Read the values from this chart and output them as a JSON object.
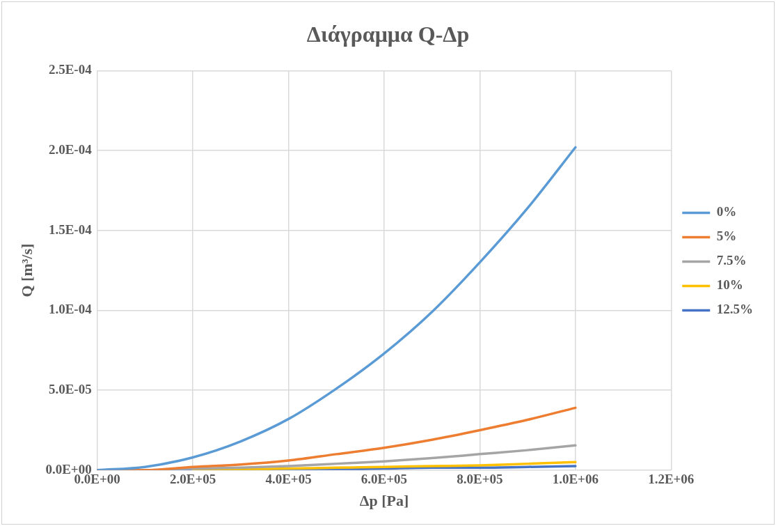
{
  "chart_data": {
    "type": "line",
    "title": "Διάγραμμα Q-Δp",
    "xlabel": "Δp [Pa]",
    "ylabel": "Q [m³/s]",
    "x": [
      0,
      100000,
      200000,
      300000,
      400000,
      500000,
      600000,
      700000,
      800000,
      900000,
      1000000
    ],
    "series": [
      {
        "name": "0%",
        "color": "#5b9bd5",
        "values": [
          0,
          2e-06,
          8e-06,
          1.8e-05,
          3.2e-05,
          5.1e-05,
          7.3e-05,
          9.9e-05,
          0.00013,
          0.000164,
          0.000202
        ]
      },
      {
        "name": "5%",
        "color": "#ed7d31",
        "values": [
          0,
          0,
          2e-06,
          3.5e-06,
          6e-06,
          1e-05,
          1.4e-05,
          1.9e-05,
          2.5e-05,
          3.15e-05,
          3.9e-05
        ]
      },
      {
        "name": "7.5%",
        "color": "#a5a5a5",
        "values": [
          0,
          0,
          1e-06,
          1.5e-06,
          2.5e-06,
          4e-06,
          5.5e-06,
          7.5e-06,
          1e-05,
          1.25e-05,
          1.55e-05
        ]
      },
      {
        "name": "10%",
        "color": "#ffc000",
        "values": [
          null,
          null,
          5e-07,
          5e-07,
          1e-06,
          1.5e-06,
          2e-06,
          2.5e-06,
          3e-06,
          4e-06,
          5e-06
        ]
      },
      {
        "name": "12.5%",
        "color": "#4472c4",
        "values": [
          0,
          0,
          0,
          0,
          5e-07,
          5e-07,
          1e-06,
          1.5e-06,
          1.5e-06,
          2e-06,
          2.5e-06
        ]
      }
    ],
    "xlim": [
      0,
      1200000
    ],
    "xticks": [
      {
        "value": 0,
        "label": "0.0E+00"
      },
      {
        "value": 200000,
        "label": "2.0E+05"
      },
      {
        "value": 400000,
        "label": "4.0E+05"
      },
      {
        "value": 600000,
        "label": "6.0E+05"
      },
      {
        "value": 800000,
        "label": "8.0E+05"
      },
      {
        "value": 1000000,
        "label": "1.0E+06"
      },
      {
        "value": 1200000,
        "label": "1.2E+06"
      }
    ],
    "ylim": [
      0,
      0.00025
    ],
    "yticks": [
      {
        "value": 0,
        "label": "0.0E+00"
      },
      {
        "value": 5e-05,
        "label": "5.0E-05"
      },
      {
        "value": 0.0001,
        "label": "1.0E-04"
      },
      {
        "value": 0.00015,
        "label": "1.5E-04"
      },
      {
        "value": 0.0002,
        "label": "2.0E-04"
      },
      {
        "value": 0.00025,
        "label": "2.5E-04"
      }
    ],
    "grid": true,
    "legend": "right",
    "marker": "none",
    "line_style": "solid"
  }
}
